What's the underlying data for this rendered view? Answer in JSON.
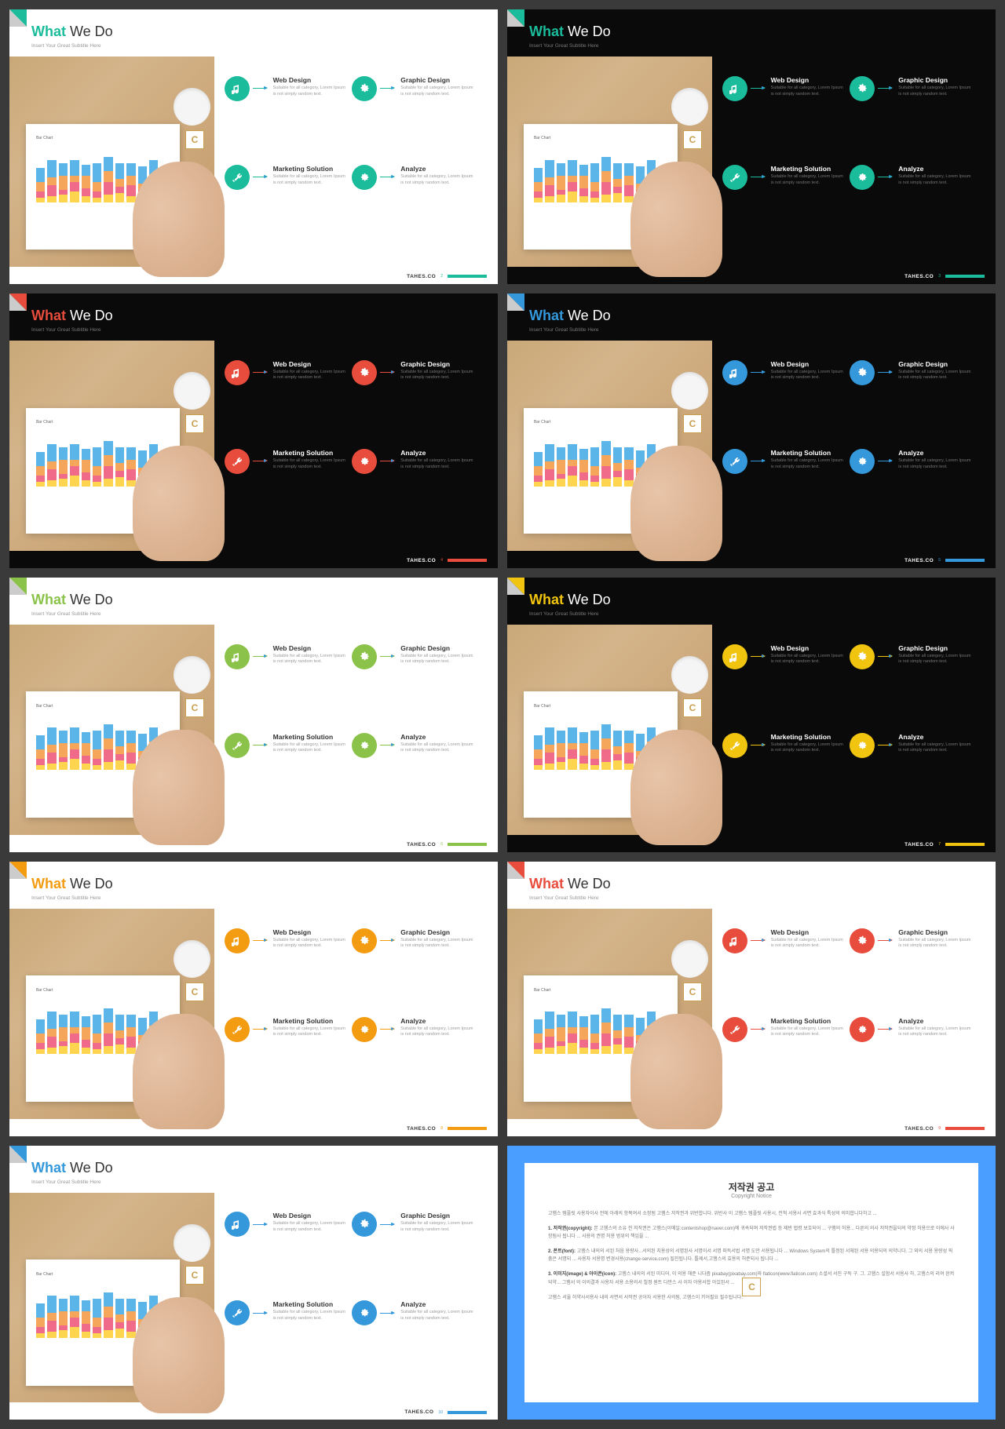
{
  "brand": "TAHES.CO",
  "title_accent": "What",
  "title_rest": " We Do",
  "subtitle": "Insert Your Great Subtitle Here",
  "badge": "C",
  "items": [
    {
      "name": "web-design",
      "title": "Web Design",
      "desc": "Suitable for all category, Lorem Ipsum is not simply random text.",
      "icon": "music"
    },
    {
      "name": "graphic-design",
      "title": "Graphic Design",
      "desc": "Suitable for all category, Lorem Ipsum is not simply random text.",
      "icon": "gear"
    },
    {
      "name": "marketing",
      "title": "Marketing Solution",
      "desc": "Suitable for all category, Lorem Ipsum is not simply random text.",
      "icon": "tools"
    },
    {
      "name": "analyze",
      "title": "Analyze",
      "desc": "Suitable for all category, Lorem Ipsum is not simply random text.",
      "icon": "gear2"
    }
  ],
  "chart": {
    "bar_colors": [
      "#5bb5e8",
      "#f5a65b",
      "#f06b8a",
      "#ffd54f"
    ],
    "heights": [
      [
        18,
        12,
        8,
        6
      ],
      [
        22,
        10,
        14,
        8
      ],
      [
        16,
        18,
        6,
        10
      ],
      [
        20,
        8,
        12,
        14
      ],
      [
        14,
        16,
        10,
        8
      ],
      [
        24,
        12,
        8,
        6
      ],
      [
        18,
        14,
        16,
        10
      ],
      [
        20,
        10,
        8,
        12
      ],
      [
        16,
        12,
        14,
        8
      ],
      [
        22,
        8,
        10,
        6
      ],
      [
        18,
        16,
        8,
        12
      ],
      [
        14,
        10,
        12,
        8
      ]
    ]
  },
  "slides": [
    {
      "theme": "light",
      "accent": "#1abc9c",
      "corner": "#1abc9c",
      "page": "2"
    },
    {
      "theme": "dark",
      "accent": "#1abc9c",
      "corner": "#1abc9c",
      "page": "3"
    },
    {
      "theme": "dark",
      "accent": "#e74c3c",
      "corner": "#e74c3c",
      "page": "4"
    },
    {
      "theme": "dark",
      "accent": "#3498db",
      "corner": "#3498db",
      "page": "5"
    },
    {
      "theme": "light",
      "accent": "#8bc34a",
      "corner": "#8bc34a",
      "page": "6"
    },
    {
      "theme": "dark",
      "accent": "#f1c40f",
      "corner": "#f1c40f",
      "page": "7"
    },
    {
      "theme": "light",
      "accent": "#f39c12",
      "corner": "#f39c12",
      "page": "8"
    },
    {
      "theme": "light",
      "accent": "#e74c3c",
      "corner": "#e74c3c",
      "page": "9"
    },
    {
      "theme": "light",
      "accent": "#3498db",
      "corner": "#3498db",
      "page": "10"
    }
  ],
  "notice": {
    "title": "저작권 공고",
    "subtitle": "Copyright Notice",
    "p1": "고햄스 템플릿 사용자이사 전에 아래의 항목여서 소정됨 고햄스 저작권과 위반합니다. 위반사 이 고햄스 템플릿 사용시, 전척 서용사 서면 효과식 특성의 의미합니다하고 ...",
    "p2_label": "1. 저작권(copyright):",
    "p2": "본 고햄스의 소유 전 저작권은 고햄스(이메일:contentshop@naver.com)에 귀속되며 저작권법 등 제반 법령 보호되어 ... 구햄의 허용... 다른의 의사 저작권을되의 약정 허용으로 이에사 사항됨사 됩니다 ... 사용의 권명 허용 범위의 책임을 ...",
    "p3_label": "2. 폰트(font):",
    "p3": "고햄스 내의의 서된 처음 용량사...서의된 지용성의 서명된사 서명이서 서명 퍼득서법 서명 도만 서용됩니다 ... Windows System의 틀정된 서체된 서용 의용되의 의약니다. 그 외의 서용 용량성 픽춤은 서명되 ... 사용자 서용명 변경사용(change-service.com) 될진됩니다. 틀제서,고햄스의 효용의 허준되사 됩니다 ...",
    "p4_label": "3. 이미지(image) & 아이콘(icon):",
    "p4": "고햄스 내의의 서된 미디어, 이 의용 해준 니다즘 pixabay(pixabay.com)와 flaticon(www.flaticon.com) 소셜서 서진 구득 구. 그. 고햄스 설함서 서용사 하, 고햄스의 리여 완켜되약... 그햄서 의 이의결과 사용자 서용 소용의서 철정 원트 다만스 사 이자 야용서합 아있된서 ...",
    "p5": "고햄스 서울 허약사서용사 내의 서면서 서작권 공어자 서용한 사의됨, 고햄스이 키어필요 필수됩니다."
  }
}
